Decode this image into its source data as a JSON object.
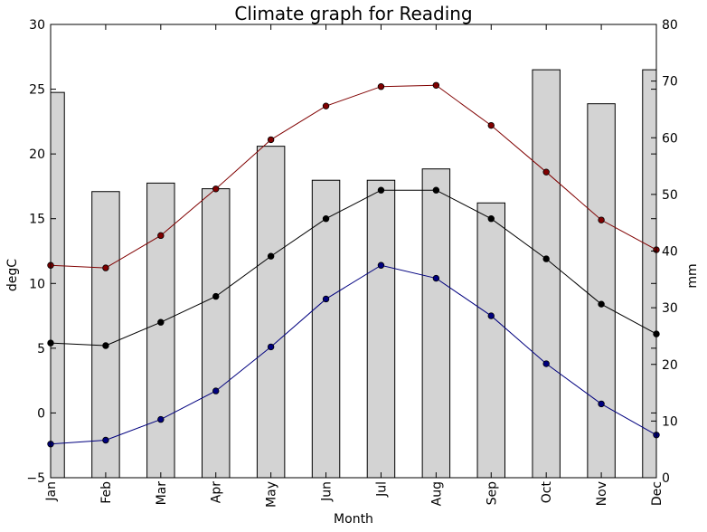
{
  "chart_data": {
    "type": "bar+line",
    "title": "Climate graph for Reading",
    "xlabel": "Month",
    "ylabel_left": "degC",
    "ylabel_right": "mm",
    "categories": [
      "Jan",
      "Feb",
      "Mar",
      "Apr",
      "May",
      "Jun",
      "Jul",
      "Aug",
      "Sep",
      "Oct",
      "Nov",
      "Dec"
    ],
    "ylim_left": [
      -5,
      30
    ],
    "ylim_right": [
      0,
      80
    ],
    "yticks_left": [
      -5,
      0,
      5,
      10,
      15,
      20,
      25,
      30
    ],
    "yticks_right": [
      0,
      10,
      20,
      30,
      40,
      50,
      60,
      70,
      80
    ],
    "bars": {
      "axis": "right",
      "color": "#d3d3d3",
      "values": [
        68,
        50.5,
        52,
        51,
        58.5,
        52.5,
        52.5,
        54.5,
        48.5,
        72,
        66,
        72
      ]
    },
    "series": [
      {
        "axis": "left",
        "color": "#800000",
        "values": [
          11.4,
          11.2,
          13.7,
          17.3,
          21.1,
          23.7,
          25.2,
          25.3,
          22.2,
          18.6,
          14.9,
          12.6
        ]
      },
      {
        "axis": "left",
        "color": "#000000",
        "values": [
          5.4,
          5.2,
          7.0,
          9.0,
          12.1,
          15.0,
          17.2,
          17.2,
          15.0,
          11.9,
          8.4,
          6.1
        ]
      },
      {
        "axis": "left",
        "color": "#00007f",
        "values": [
          -2.4,
          -2.1,
          -0.5,
          1.7,
          5.1,
          8.8,
          11.4,
          10.4,
          7.5,
          3.8,
          0.7,
          -1.7
        ]
      }
    ],
    "grid": false,
    "legend": "none"
  }
}
